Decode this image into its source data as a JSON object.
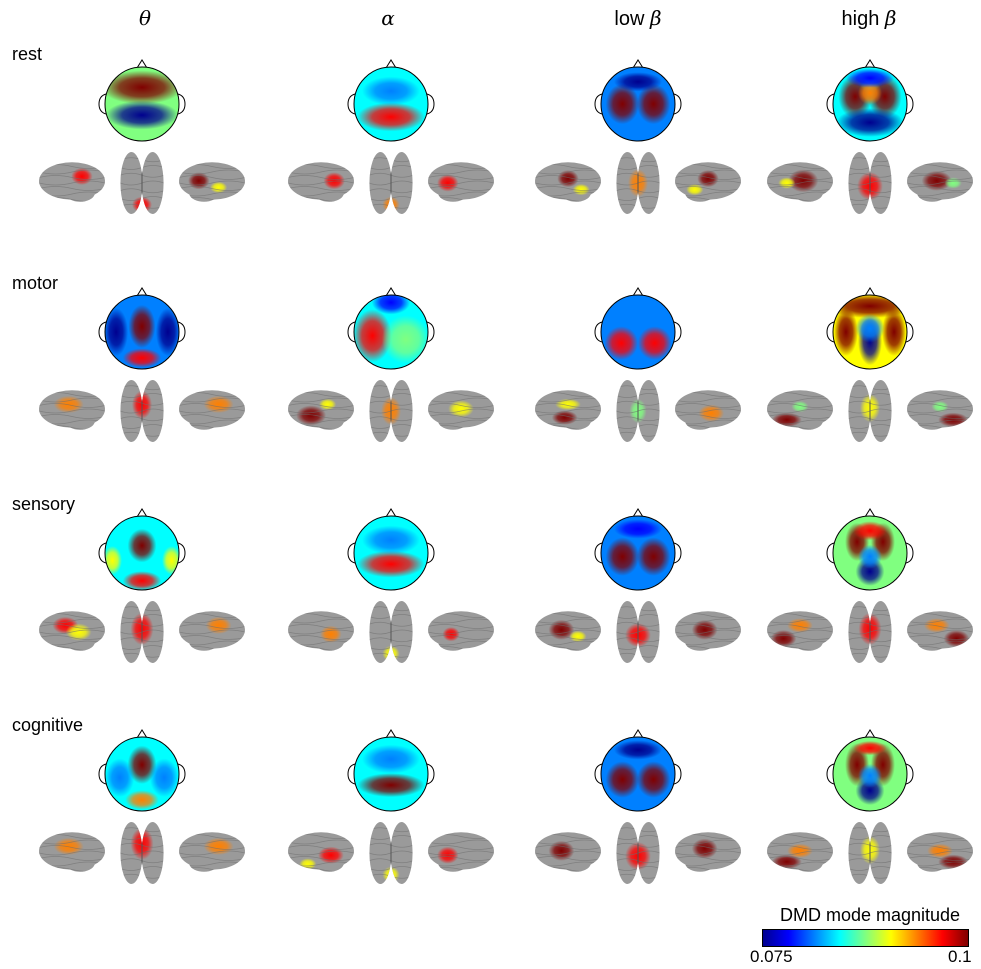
{
  "columns": [
    {
      "prefix": "",
      "greek": "θ"
    },
    {
      "prefix": "",
      "greek": "α"
    },
    {
      "prefix": "low ",
      "greek": "β"
    },
    {
      "prefix": "high ",
      "greek": "β"
    }
  ],
  "rows": [
    "rest",
    "motor",
    "sensory",
    "cognitive"
  ],
  "colorbar": {
    "title": "DMD mode magnitude",
    "min": "0.075",
    "max": "0.1"
  },
  "colors": {
    "jet": [
      "#00008f",
      "#0000ff",
      "#0080ff",
      "#00ffff",
      "#80ff80",
      "#ffff00",
      "#ff8000",
      "#ff0000",
      "#800000"
    ],
    "brain_gray": "#9a9a9a",
    "brain_sulcus": "#6e6e6e"
  },
  "topomaps": [
    [
      {
        "bg": 0.45,
        "blobs": [
          [
            0,
            -0.45,
            0.85,
            0.35,
            0.95
          ],
          [
            0,
            0.3,
            0.75,
            0.3,
            0.05
          ]
        ]
      },
      {
        "bg": 0.35,
        "blobs": [
          [
            0,
            0.35,
            0.7,
            0.3,
            0.92
          ],
          [
            0,
            -0.35,
            0.6,
            0.3,
            0.2
          ]
        ]
      },
      {
        "bg": 0.2,
        "blobs": [
          [
            -0.42,
            0,
            0.35,
            0.42,
            0.98
          ],
          [
            0.42,
            0,
            0.35,
            0.42,
            0.98
          ],
          [
            0,
            -0.6,
            0.5,
            0.2,
            0.05
          ]
        ]
      },
      {
        "bg": 0.35,
        "blobs": [
          [
            -0.4,
            -0.2,
            0.35,
            0.45,
            0.98
          ],
          [
            0.4,
            -0.2,
            0.35,
            0.45,
            0.98
          ],
          [
            0,
            -0.3,
            0.25,
            0.25,
            0.7
          ],
          [
            0,
            0.5,
            0.7,
            0.3,
            0.02
          ],
          [
            0,
            -0.7,
            0.5,
            0.2,
            0.1
          ]
        ]
      }
    ],
    [
      {
        "bg": 0.3,
        "blobs": [
          [
            0,
            -0.15,
            0.28,
            0.45,
            0.98
          ],
          [
            0,
            0.7,
            0.4,
            0.2,
            0.85
          ],
          [
            -0.7,
            0,
            0.25,
            0.5,
            0.05
          ],
          [
            0.7,
            0,
            0.25,
            0.5,
            0.05
          ]
        ]
      },
      {
        "bg": 0.4,
        "blobs": [
          [
            -0.5,
            0.1,
            0.4,
            0.55,
            0.85
          ],
          [
            0,
            -0.8,
            0.4,
            0.25,
            0.1
          ],
          [
            0.4,
            0.2,
            0.5,
            0.5,
            0.45
          ]
        ]
      },
      {
        "bg": 0.3,
        "blobs": [
          [
            -0.45,
            0.3,
            0.35,
            0.35,
            0.9
          ],
          [
            0.45,
            0.3,
            0.35,
            0.35,
            0.9
          ],
          [
            0,
            -0.5,
            0.6,
            0.3,
            0.2
          ]
        ]
      },
      {
        "bg": 0.6,
        "blobs": [
          [
            0,
            -0.7,
            0.9,
            0.25,
            0.98
          ],
          [
            -0.65,
            0,
            0.25,
            0.5,
            0.95
          ],
          [
            0.65,
            0,
            0.25,
            0.5,
            0.95
          ],
          [
            0,
            0.25,
            0.25,
            0.5,
            0.0
          ],
          [
            0,
            -0.1,
            0.3,
            0.3,
            0.3
          ]
        ]
      }
    ],
    [
      {
        "bg": 0.4,
        "blobs": [
          [
            0,
            -0.2,
            0.3,
            0.35,
            0.98
          ],
          [
            0,
            0.75,
            0.4,
            0.2,
            0.85
          ],
          [
            -0.8,
            0.2,
            0.2,
            0.3,
            0.6
          ],
          [
            0.8,
            0.2,
            0.2,
            0.3,
            0.6
          ]
        ]
      },
      {
        "bg": 0.35,
        "blobs": [
          [
            0,
            0.3,
            0.7,
            0.28,
            0.92
          ],
          [
            0,
            -0.35,
            0.6,
            0.3,
            0.2
          ]
        ]
      },
      {
        "bg": 0.25,
        "blobs": [
          [
            -0.42,
            0.1,
            0.35,
            0.4,
            0.98
          ],
          [
            0.42,
            0.1,
            0.35,
            0.4,
            0.98
          ],
          [
            0,
            -0.65,
            0.5,
            0.2,
            0.08
          ]
        ]
      },
      {
        "bg": 0.5,
        "blobs": [
          [
            -0.35,
            -0.3,
            0.25,
            0.4,
            0.95
          ],
          [
            0.35,
            -0.3,
            0.25,
            0.4,
            0.95
          ],
          [
            0,
            -0.6,
            0.35,
            0.2,
            0.9
          ],
          [
            0,
            0.5,
            0.3,
            0.3,
            0.05
          ],
          [
            0,
            0.1,
            0.25,
            0.25,
            0.25
          ]
        ]
      }
    ],
    [
      {
        "bg": 0.35,
        "blobs": [
          [
            0,
            -0.25,
            0.3,
            0.4,
            0.98
          ],
          [
            0,
            0.7,
            0.35,
            0.2,
            0.8
          ],
          [
            -0.6,
            0.1,
            0.3,
            0.4,
            0.3
          ],
          [
            0.6,
            0.1,
            0.3,
            0.4,
            0.3
          ]
        ]
      },
      {
        "bg": 0.35,
        "blobs": [
          [
            0,
            0.3,
            0.7,
            0.25,
            0.95
          ],
          [
            0,
            -0.4,
            0.6,
            0.3,
            0.2
          ]
        ]
      },
      {
        "bg": 0.25,
        "blobs": [
          [
            -0.42,
            0.15,
            0.35,
            0.38,
            0.98
          ],
          [
            0.42,
            0.15,
            0.35,
            0.38,
            0.98
          ],
          [
            0,
            -0.65,
            0.5,
            0.2,
            0.05
          ]
        ]
      },
      {
        "bg": 0.5,
        "blobs": [
          [
            -0.35,
            -0.25,
            0.25,
            0.45,
            0.95
          ],
          [
            0.35,
            -0.25,
            0.25,
            0.45,
            0.95
          ],
          [
            0,
            0.45,
            0.3,
            0.3,
            0.02
          ],
          [
            0,
            0.05,
            0.25,
            0.25,
            0.3
          ],
          [
            0,
            -0.7,
            0.35,
            0.15,
            0.85
          ]
        ]
      }
    ]
  ],
  "brains": [
    [
      [
        [
          [
            0.65,
            0.35,
            0.25,
            0.3,
            0.85
          ]
        ],
        [
          [
            0.5,
            0.85,
            0.35,
            0.2,
            0.85
          ]
        ],
        [
          [
            0.3,
            0.45,
            0.25,
            0.3,
            0.95
          ],
          [
            0.6,
            0.6,
            0.2,
            0.2,
            0.6
          ]
        ]
      ],
      [
        [
          [
            0.7,
            0.45,
            0.25,
            0.3,
            0.85
          ]
        ],
        [
          [
            0.5,
            0.85,
            0.3,
            0.2,
            0.7
          ]
        ],
        [
          [
            0.3,
            0.5,
            0.25,
            0.3,
            0.9
          ]
        ]
      ],
      [
        [
          [
            0.5,
            0.4,
            0.25,
            0.3,
            0.95
          ],
          [
            0.7,
            0.65,
            0.2,
            0.2,
            0.6
          ]
        ],
        [
          [
            0.5,
            0.5,
            0.35,
            0.35,
            0.75
          ]
        ],
        [
          [
            0.5,
            0.4,
            0.25,
            0.3,
            0.95
          ],
          [
            0.3,
            0.65,
            0.2,
            0.2,
            0.6
          ]
        ]
      ],
      [
        [
          [
            0.55,
            0.45,
            0.35,
            0.4,
            0.98
          ],
          [
            0.3,
            0.5,
            0.2,
            0.2,
            0.6
          ]
        ],
        [
          [
            0.5,
            0.55,
            0.45,
            0.35,
            0.85
          ]
        ],
        [
          [
            0.45,
            0.45,
            0.35,
            0.35,
            0.95
          ],
          [
            0.7,
            0.5,
            0.2,
            0.2,
            0.5
          ]
        ]
      ]
    ],
    [
      [
        [
          [
            0.45,
            0.35,
            0.35,
            0.3,
            0.75
          ]
        ],
        [
          [
            0.5,
            0.4,
            0.35,
            0.35,
            0.85
          ]
        ],
        [
          [
            0.6,
            0.35,
            0.35,
            0.3,
            0.75
          ]
        ]
      ],
      [
        [
          [
            0.35,
            0.6,
            0.35,
            0.35,
            0.98
          ],
          [
            0.6,
            0.35,
            0.2,
            0.2,
            0.6
          ]
        ],
        [
          [
            0.5,
            0.5,
            0.35,
            0.35,
            0.7
          ]
        ],
        [
          [
            0.5,
            0.45,
            0.3,
            0.3,
            0.6
          ]
        ]
      ],
      [
        [
          [
            0.45,
            0.65,
            0.3,
            0.25,
            0.95
          ],
          [
            0.5,
            0.35,
            0.3,
            0.2,
            0.6
          ]
        ],
        [
          [
            0.5,
            0.5,
            0.3,
            0.3,
            0.5
          ]
        ],
        [
          [
            0.55,
            0.55,
            0.3,
            0.3,
            0.75
          ]
        ]
      ],
      [
        [
          [
            0.3,
            0.7,
            0.35,
            0.25,
            0.98
          ],
          [
            0.5,
            0.4,
            0.2,
            0.2,
            0.55
          ]
        ],
        [
          [
            0.5,
            0.45,
            0.35,
            0.35,
            0.6
          ]
        ],
        [
          [
            0.7,
            0.7,
            0.35,
            0.25,
            0.98
          ],
          [
            0.5,
            0.4,
            0.2,
            0.2,
            0.55
          ]
        ]
      ]
    ],
    [
      [
        [
          [
            0.4,
            0.35,
            0.3,
            0.3,
            0.85
          ],
          [
            0.6,
            0.5,
            0.3,
            0.3,
            0.6
          ]
        ],
        [
          [
            0.5,
            0.45,
            0.4,
            0.4,
            0.85
          ]
        ],
        [
          [
            0.6,
            0.35,
            0.3,
            0.3,
            0.75
          ]
        ]
      ],
      [
        [
          [
            0.65,
            0.55,
            0.25,
            0.3,
            0.8
          ]
        ],
        [
          [
            0.5,
            0.85,
            0.3,
            0.2,
            0.6
          ]
        ],
        [
          [
            0.35,
            0.55,
            0.2,
            0.25,
            0.85
          ]
        ]
      ],
      [
        [
          [
            0.4,
            0.45,
            0.3,
            0.35,
            0.95
          ],
          [
            0.65,
            0.6,
            0.2,
            0.2,
            0.6
          ]
        ],
        [
          [
            0.5,
            0.55,
            0.45,
            0.3,
            0.9
          ]
        ],
        [
          [
            0.45,
            0.45,
            0.3,
            0.35,
            0.95
          ]
        ]
      ],
      [
        [
          [
            0.25,
            0.65,
            0.3,
            0.3,
            0.98
          ],
          [
            0.5,
            0.35,
            0.3,
            0.25,
            0.75
          ]
        ],
        [
          [
            0.5,
            0.45,
            0.4,
            0.4,
            0.85
          ]
        ],
        [
          [
            0.75,
            0.65,
            0.3,
            0.3,
            0.98
          ],
          [
            0.45,
            0.35,
            0.3,
            0.25,
            0.75
          ]
        ]
      ]
    ],
    [
      [
        [
          [
            0.45,
            0.35,
            0.35,
            0.3,
            0.8
          ]
        ],
        [
          [
            0.5,
            0.35,
            0.4,
            0.4,
            0.9
          ]
        ],
        [
          [
            0.6,
            0.35,
            0.35,
            0.3,
            0.75
          ]
        ]
      ],
      [
        [
          [
            0.65,
            0.55,
            0.3,
            0.3,
            0.85
          ],
          [
            0.3,
            0.75,
            0.2,
            0.2,
            0.6
          ]
        ],
        [
          [
            0.5,
            0.85,
            0.3,
            0.2,
            0.6
          ]
        ],
        [
          [
            0.3,
            0.55,
            0.25,
            0.3,
            0.85
          ]
        ]
      ],
      [
        [
          [
            0.4,
            0.45,
            0.3,
            0.35,
            0.95
          ]
        ],
        [
          [
            0.5,
            0.55,
            0.45,
            0.35,
            0.85
          ]
        ],
        [
          [
            0.45,
            0.4,
            0.3,
            0.35,
            0.95
          ]
        ]
      ],
      [
        [
          [
            0.3,
            0.7,
            0.35,
            0.25,
            0.98
          ],
          [
            0.5,
            0.45,
            0.3,
            0.25,
            0.7
          ]
        ],
        [
          [
            0.5,
            0.45,
            0.35,
            0.35,
            0.6
          ]
        ],
        [
          [
            0.7,
            0.7,
            0.35,
            0.25,
            0.98
          ],
          [
            0.5,
            0.45,
            0.3,
            0.25,
            0.7
          ]
        ]
      ]
    ]
  ]
}
